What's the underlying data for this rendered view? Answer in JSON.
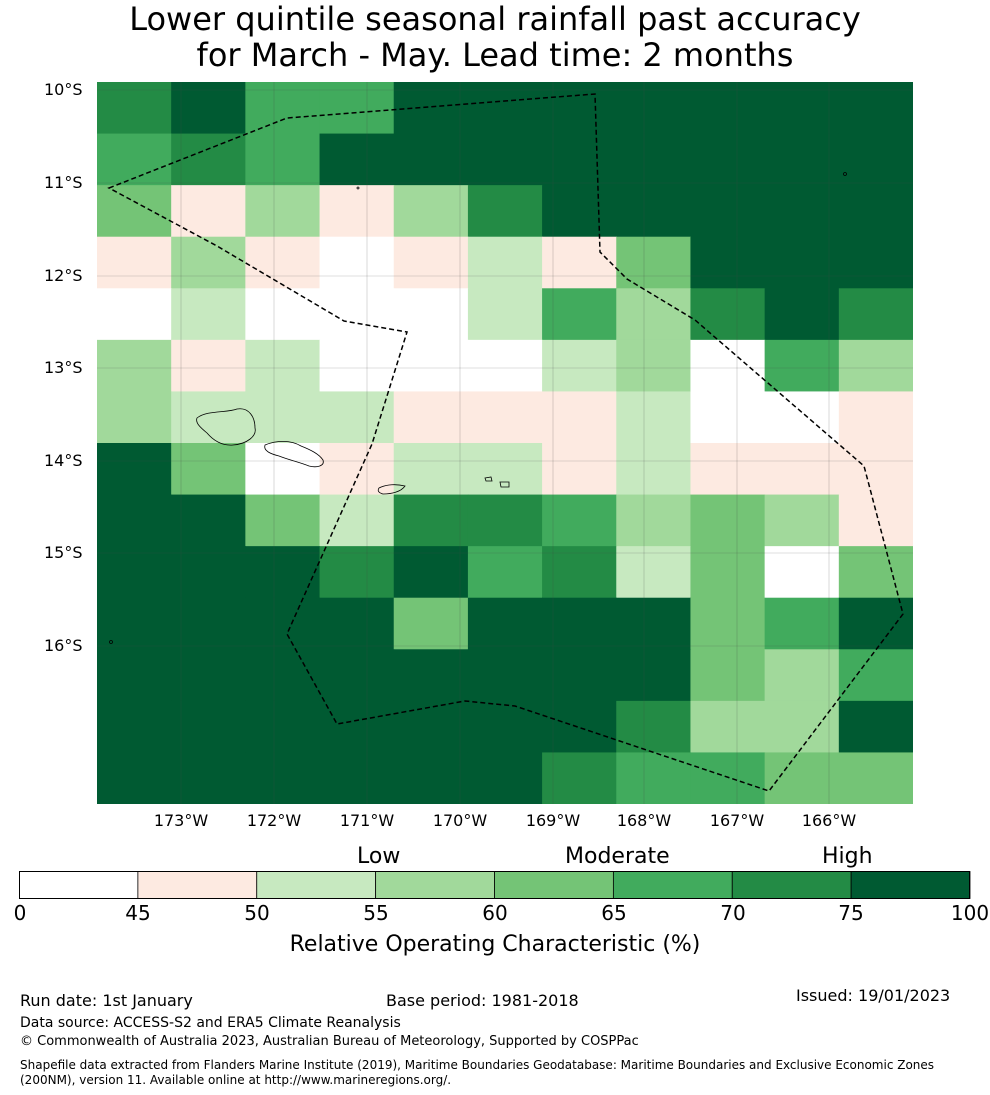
{
  "title": {
    "line1": "Lower quintile seasonal rainfall past accuracy",
    "line2": "for March - May. Lead time: 2 months"
  },
  "map": {
    "lat_labels": [
      "10°S",
      "11°S",
      "12°S",
      "13°S",
      "14°S",
      "15°S",
      "16°S"
    ],
    "lon_labels": [
      "173°W",
      "172°W",
      "171°W",
      "170°W",
      "169°W",
      "168°W",
      "167°W",
      "166°W"
    ],
    "grid_roc_class": [
      [
        6,
        7,
        5,
        5,
        7,
        7,
        7,
        7,
        7,
        7,
        7
      ],
      [
        5,
        6,
        5,
        7,
        7,
        7,
        7,
        7,
        7,
        7,
        7
      ],
      [
        4,
        1,
        3,
        1,
        3,
        6,
        7,
        7,
        7,
        7,
        7
      ],
      [
        1,
        3,
        1,
        0,
        1,
        2,
        1,
        4,
        7,
        7,
        7
      ],
      [
        0,
        2,
        0,
        0,
        0,
        2,
        5,
        3,
        6,
        7,
        6
      ],
      [
        3,
        1,
        2,
        0,
        0,
        0,
        2,
        3,
        0,
        5,
        3
      ],
      [
        3,
        2,
        2,
        2,
        1,
        1,
        1,
        2,
        0,
        0,
        1
      ],
      [
        7,
        4,
        0,
        1,
        2,
        2,
        1,
        2,
        1,
        1,
        1
      ],
      [
        7,
        7,
        4,
        2,
        6,
        6,
        5,
        3,
        4,
        3,
        1
      ],
      [
        7,
        7,
        7,
        6,
        7,
        5,
        6,
        2,
        4,
        0,
        4
      ],
      [
        7,
        7,
        7,
        7,
        4,
        7,
        7,
        7,
        4,
        5,
        7
      ],
      [
        7,
        7,
        7,
        7,
        7,
        7,
        7,
        7,
        4,
        3,
        5
      ],
      [
        7,
        7,
        7,
        7,
        7,
        7,
        7,
        6,
        3,
        3,
        7
      ],
      [
        7,
        7,
        7,
        7,
        7,
        7,
        6,
        5,
        5,
        4,
        4
      ]
    ]
  },
  "colorbar": {
    "colors": [
      "#ffffff",
      "#fdeae1",
      "#c7e9c0",
      "#a1d99b",
      "#74c476",
      "#41ab5d",
      "#238b45",
      "#005a32"
    ],
    "ticks": [
      "0",
      "45",
      "50",
      "55",
      "60",
      "65",
      "70",
      "75",
      "100"
    ],
    "categories": [
      "Low",
      "Moderate",
      "High"
    ],
    "title": "Relative Operating Characteristic (%)"
  },
  "footer": {
    "run_date": "Run date: 1st January",
    "base_period": "Base period: 1981-2018",
    "issued": "Issued: 19/01/2023",
    "data_source": "Data source: ACCESS-S2 and ERA5 Climate Reanalysis",
    "copyright": "© Commonwealth of Australia 2023, Australian Bureau of Meteorology, Supported by COSPPac",
    "shapefile_line1": "Shapefile data extracted from Flanders Marine Institute (2019), Maritime Boundaries Geodatabase: Maritime Boundaries and Exclusive Economic Zones",
    "shapefile_line2": "(200NM), version 11. Available online at http://www.marineregions.org/."
  }
}
